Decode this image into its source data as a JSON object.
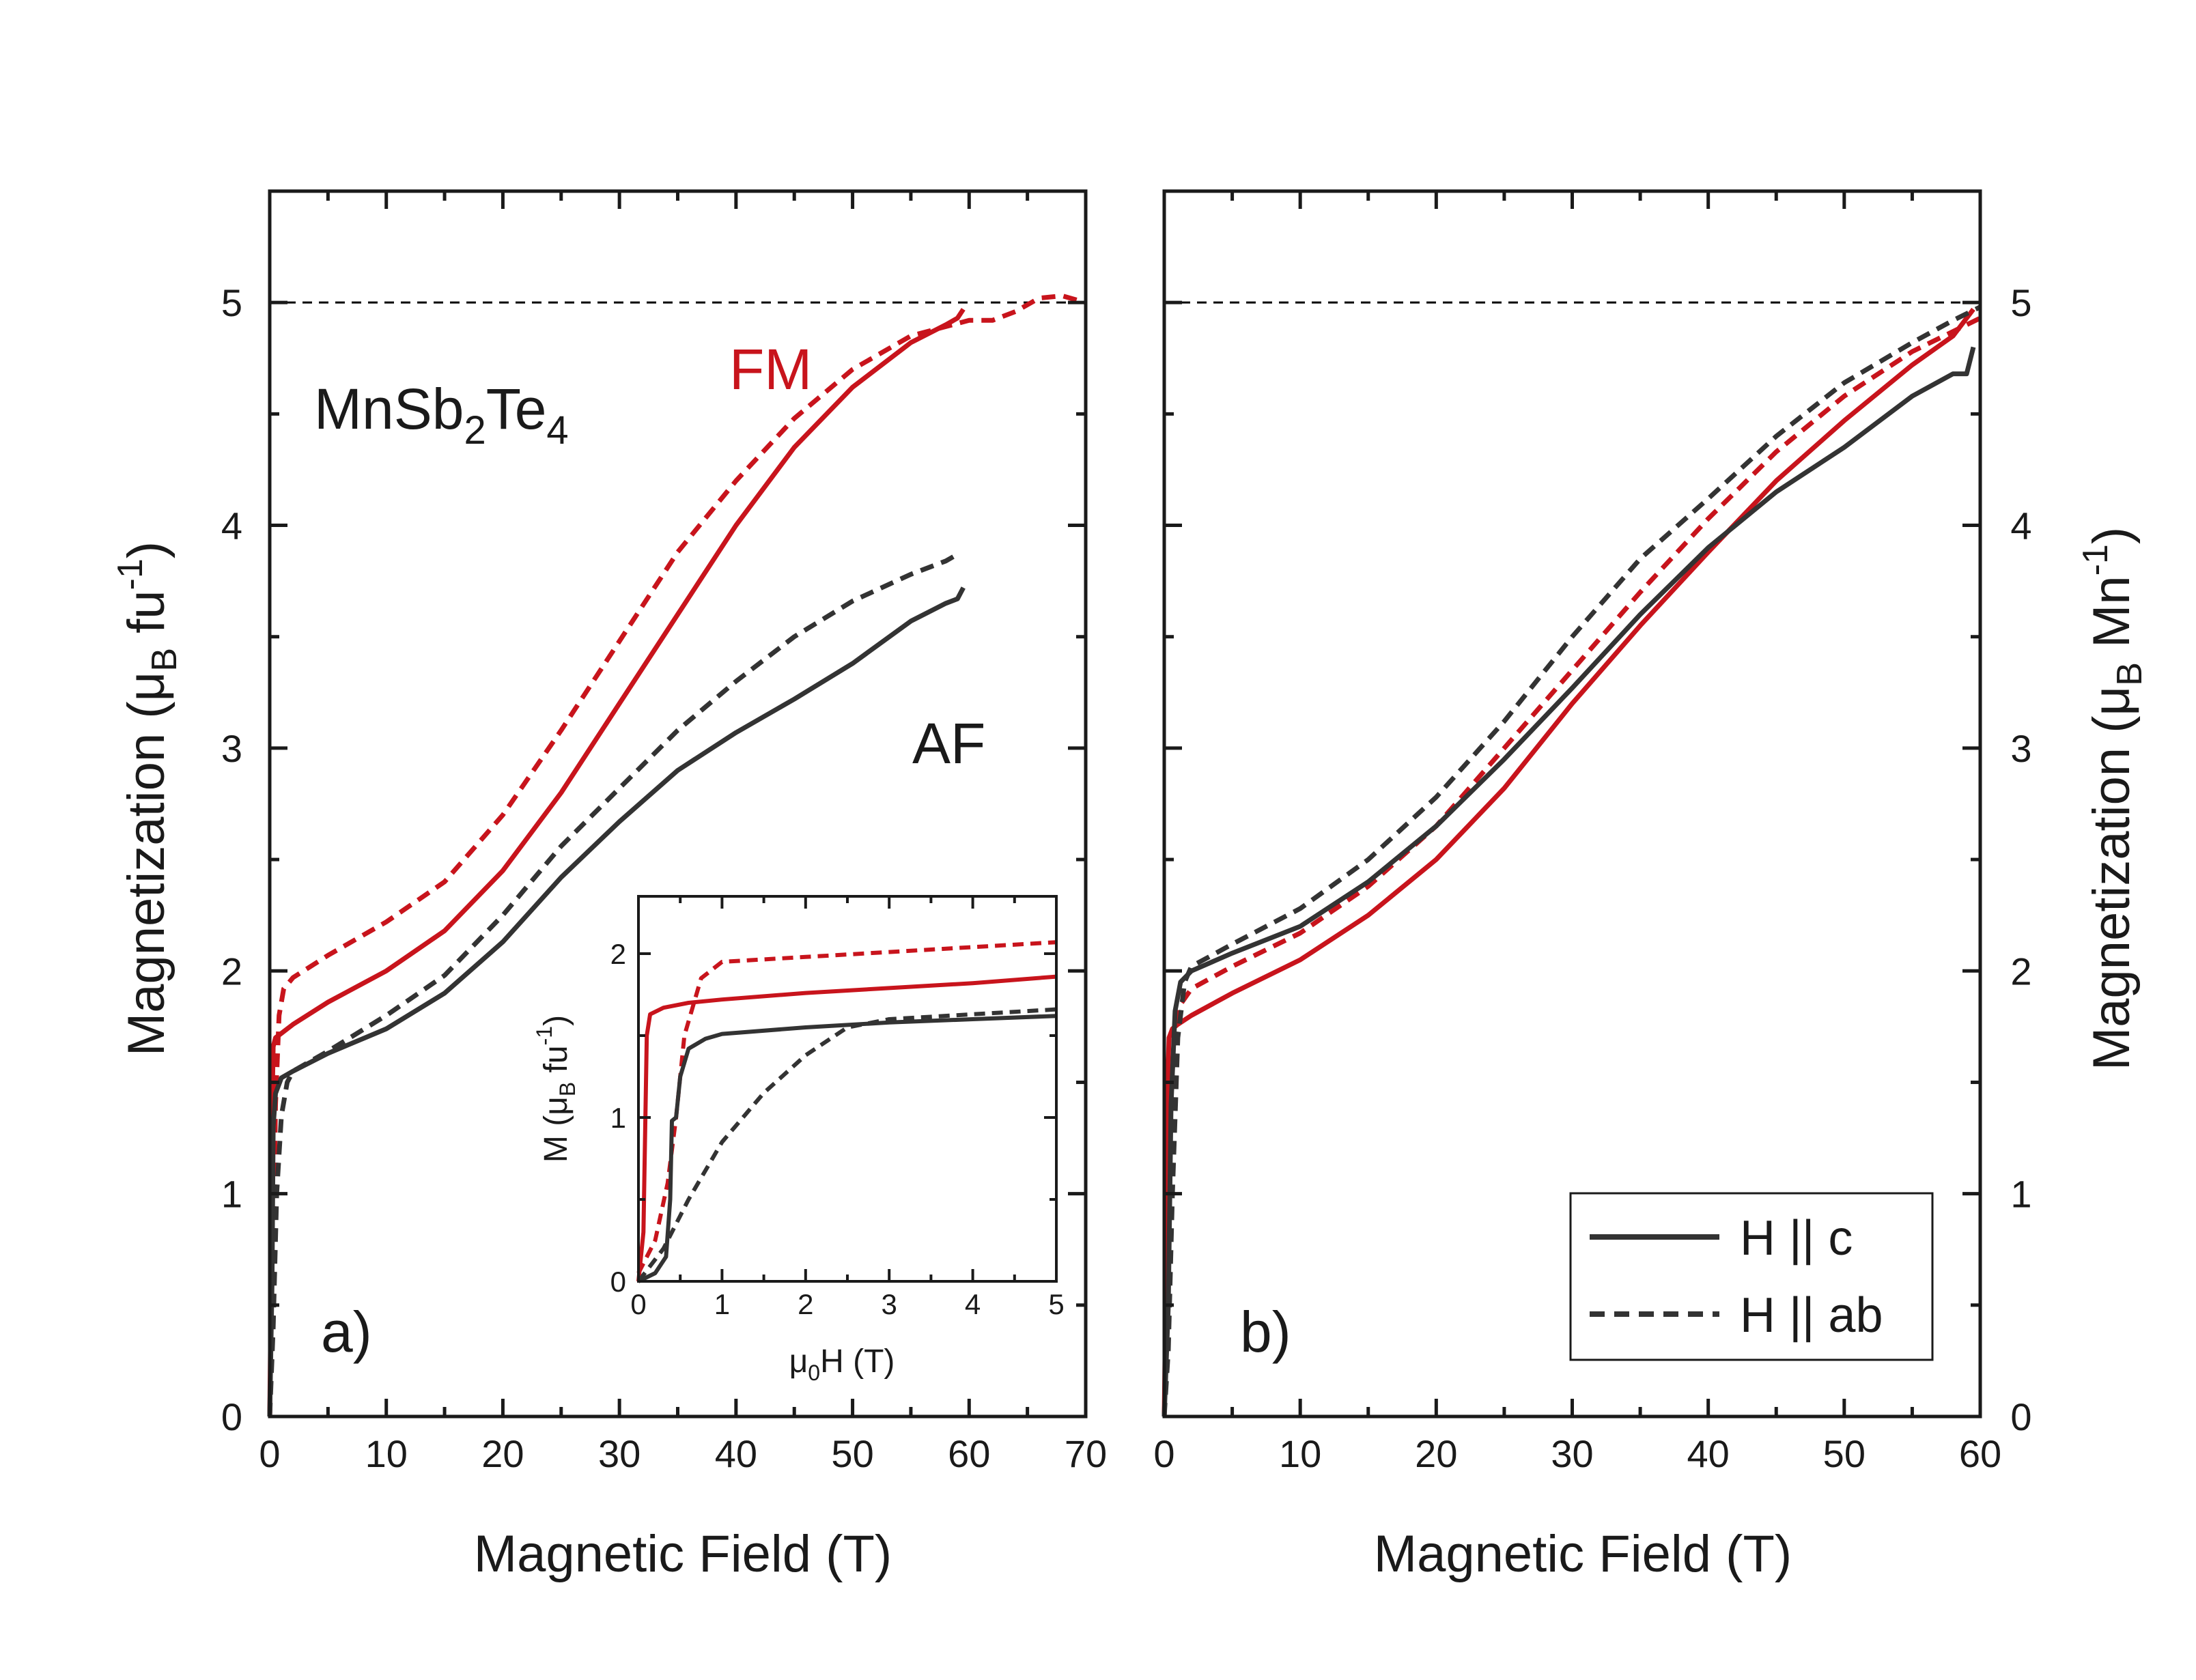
{
  "colors": {
    "fm": "#c8141c",
    "af": "#333333",
    "ref_line": "#000000",
    "axis": "#1a1a1a"
  },
  "chart_data": [
    {
      "id": "a",
      "type": "line",
      "panel_label": "a)",
      "xlabel": "Magnetic Field (T)",
      "ylabel": "Magnetization (μB fu-1)",
      "ylabel_parts": {
        "main": "Magnetization (μ",
        "sub": "B",
        "mid": " fu",
        "sup": "-1",
        "end": ")"
      },
      "xlim": [
        0,
        70
      ],
      "ylim": [
        0,
        5.5
      ],
      "xticks": [
        0,
        10,
        20,
        30,
        40,
        50,
        60,
        70
      ],
      "yticks": [
        0,
        1,
        2,
        3,
        4,
        5
      ],
      "reference_line_y": 5,
      "annotations": {
        "compound": {
          "main": "MnSb",
          "sub1": "2",
          "mid": "Te",
          "sub2": "4"
        },
        "fm": "FM",
        "af": "AF"
      },
      "series": [
        {
          "group": "FM",
          "orientation": "H || c",
          "style": "solid",
          "color": "#c8141c",
          "points": [
            [
              0,
              0
            ],
            [
              0.1,
              0.5
            ],
            [
              0.2,
              1.35
            ],
            [
              0.3,
              1.66
            ],
            [
              0.5,
              1.7
            ],
            [
              1,
              1.72
            ],
            [
              2,
              1.76
            ],
            [
              5,
              1.86
            ],
            [
              10,
              2.0
            ],
            [
              15,
              2.18
            ],
            [
              20,
              2.45
            ],
            [
              25,
              2.8
            ],
            [
              30,
              3.2
            ],
            [
              35,
              3.6
            ],
            [
              40,
              4.0
            ],
            [
              45,
              4.35
            ],
            [
              50,
              4.62
            ],
            [
              55,
              4.82
            ],
            [
              58,
              4.9
            ],
            [
              59,
              4.93
            ],
            [
              59.5,
              4.97
            ]
          ]
        },
        {
          "group": "FM",
          "orientation": "H || ab",
          "style": "dashed",
          "color": "#c8141c",
          "points": [
            [
              0,
              0
            ],
            [
              0.2,
              0.4
            ],
            [
              0.5,
              1.4
            ],
            [
              0.8,
              1.8
            ],
            [
              1.2,
              1.92
            ],
            [
              2,
              1.97
            ],
            [
              5,
              2.07
            ],
            [
              10,
              2.22
            ],
            [
              15,
              2.4
            ],
            [
              20,
              2.7
            ],
            [
              25,
              3.08
            ],
            [
              30,
              3.48
            ],
            [
              35,
              3.88
            ],
            [
              40,
              4.2
            ],
            [
              45,
              4.48
            ],
            [
              50,
              4.7
            ],
            [
              55,
              4.85
            ],
            [
              60,
              4.92
            ],
            [
              62,
              4.92
            ],
            [
              64,
              4.96
            ],
            [
              66,
              5.02
            ],
            [
              68,
              5.03
            ],
            [
              70,
              5.0
            ]
          ]
        },
        {
          "group": "AF",
          "orientation": "H || c",
          "style": "solid",
          "color": "#333333",
          "points": [
            [
              0,
              0
            ],
            [
              0.1,
              0.3
            ],
            [
              0.2,
              0.6
            ],
            [
              0.3,
              1.3
            ],
            [
              0.5,
              1.45
            ],
            [
              1,
              1.52
            ],
            [
              2,
              1.55
            ],
            [
              5,
              1.63
            ],
            [
              10,
              1.74
            ],
            [
              15,
              1.9
            ],
            [
              20,
              2.13
            ],
            [
              25,
              2.42
            ],
            [
              30,
              2.67
            ],
            [
              35,
              2.9
            ],
            [
              40,
              3.07
            ],
            [
              45,
              3.22
            ],
            [
              50,
              3.38
            ],
            [
              55,
              3.57
            ],
            [
              58,
              3.65
            ],
            [
              59,
              3.67
            ],
            [
              59.5,
              3.72
            ]
          ]
        },
        {
          "group": "AF",
          "orientation": "H || ab",
          "style": "dashed",
          "color": "#333333",
          "points": [
            [
              0,
              0
            ],
            [
              0.3,
              0.4
            ],
            [
              0.6,
              1.0
            ],
            [
              1,
              1.35
            ],
            [
              1.5,
              1.5
            ],
            [
              2,
              1.55
            ],
            [
              5,
              1.64
            ],
            [
              10,
              1.8
            ],
            [
              15,
              1.98
            ],
            [
              20,
              2.25
            ],
            [
              25,
              2.56
            ],
            [
              30,
              2.82
            ],
            [
              35,
              3.08
            ],
            [
              40,
              3.3
            ],
            [
              45,
              3.5
            ],
            [
              50,
              3.66
            ],
            [
              55,
              3.78
            ],
            [
              58,
              3.84
            ],
            [
              59,
              3.87
            ]
          ]
        }
      ]
    },
    {
      "id": "a-inset",
      "type": "line",
      "xlabel": "μ0H (T)",
      "xlabel_parts": {
        "main": "μ",
        "sub": "0",
        "end": "H (T)"
      },
      "ylabel": "M (μB fu-1)",
      "ylabel_parts": {
        "main": "M (μ",
        "sub": "B",
        "mid": " fu",
        "sup": "-1",
        "end": ")"
      },
      "xlim": [
        0,
        5
      ],
      "ylim": [
        0,
        2.35
      ],
      "xticks": [
        0,
        1,
        2,
        3,
        4,
        5
      ],
      "yticks": [
        0,
        1,
        2
      ],
      "series": [
        {
          "group": "FM",
          "orientation": "H || c",
          "style": "solid",
          "color": "#c8141c",
          "points": [
            [
              0,
              0
            ],
            [
              0.06,
              0.3
            ],
            [
              0.1,
              1.5
            ],
            [
              0.14,
              1.63
            ],
            [
              0.3,
              1.67
            ],
            [
              0.6,
              1.7
            ],
            [
              1,
              1.72
            ],
            [
              2,
              1.76
            ],
            [
              3,
              1.79
            ],
            [
              4,
              1.82
            ],
            [
              5,
              1.86
            ]
          ]
        },
        {
          "group": "FM",
          "orientation": "H || ab",
          "style": "dashed",
          "color": "#c8141c",
          "points": [
            [
              0,
              0.05
            ],
            [
              0.2,
              0.25
            ],
            [
              0.35,
              0.6
            ],
            [
              0.45,
              1.0
            ],
            [
              0.55,
              1.5
            ],
            [
              0.75,
              1.85
            ],
            [
              1,
              1.95
            ],
            [
              2,
              1.98
            ],
            [
              3,
              2.01
            ],
            [
              4,
              2.04
            ],
            [
              5,
              2.07
            ]
          ]
        },
        {
          "group": "AF",
          "orientation": "H || c",
          "style": "solid",
          "color": "#333333",
          "points": [
            [
              0,
              0
            ],
            [
              0.2,
              0.05
            ],
            [
              0.33,
              0.15
            ],
            [
              0.38,
              0.5
            ],
            [
              0.4,
              0.98
            ],
            [
              0.45,
              1.0
            ],
            [
              0.5,
              1.25
            ],
            [
              0.6,
              1.42
            ],
            [
              0.8,
              1.48
            ],
            [
              1,
              1.51
            ],
            [
              2,
              1.55
            ],
            [
              3,
              1.58
            ],
            [
              4,
              1.6
            ],
            [
              5,
              1.62
            ]
          ]
        },
        {
          "group": "AF",
          "orientation": "H || ab",
          "style": "dashed",
          "color": "#333333",
          "points": [
            [
              0,
              0
            ],
            [
              0.3,
              0.2
            ],
            [
              0.6,
              0.5
            ],
            [
              1,
              0.85
            ],
            [
              1.5,
              1.15
            ],
            [
              2,
              1.38
            ],
            [
              2.5,
              1.55
            ],
            [
              3,
              1.6
            ],
            [
              4,
              1.63
            ],
            [
              5,
              1.66
            ]
          ]
        }
      ]
    },
    {
      "id": "b",
      "type": "line",
      "panel_label": "b)",
      "xlabel": "Magnetic Field (T)",
      "ylabel": "Magnetization (μB Mn-1)",
      "ylabel_parts": {
        "main": "Magnetization (μ",
        "sub": "B",
        "mid": " Mn",
        "sup": "-1",
        "end": ")"
      },
      "xlim": [
        0,
        60
      ],
      "ylim": [
        0,
        5.5
      ],
      "xticks": [
        0,
        10,
        20,
        30,
        40,
        50,
        60
      ],
      "yticks": [
        0,
        1,
        2,
        3,
        4,
        5
      ],
      "reference_line_y": 5,
      "legend": {
        "position": "bottom-right",
        "entries": [
          {
            "label": "H || c",
            "style": "solid",
            "color": "#333333"
          },
          {
            "label": "H || ab",
            "style": "dashed",
            "color": "#333333"
          }
        ]
      },
      "series": [
        {
          "group": "FM",
          "orientation": "H || c",
          "style": "solid",
          "color": "#c8141c",
          "points": [
            [
              0,
              0
            ],
            [
              0.1,
              0.5
            ],
            [
              0.2,
              1.4
            ],
            [
              0.35,
              1.7
            ],
            [
              0.6,
              1.74
            ],
            [
              1,
              1.76
            ],
            [
              2,
              1.8
            ],
            [
              5,
              1.9
            ],
            [
              10,
              2.05
            ],
            [
              15,
              2.25
            ],
            [
              20,
              2.5
            ],
            [
              25,
              2.82
            ],
            [
              30,
              3.2
            ],
            [
              35,
              3.55
            ],
            [
              40,
              3.88
            ],
            [
              45,
              4.2
            ],
            [
              50,
              4.47
            ],
            [
              55,
              4.72
            ],
            [
              58,
              4.85
            ],
            [
              59.5,
              4.97
            ]
          ]
        },
        {
          "group": "FM",
          "orientation": "H || ab",
          "style": "dashed",
          "color": "#c8141c",
          "points": [
            [
              0,
              0
            ],
            [
              0.2,
              0.4
            ],
            [
              0.5,
              1.4
            ],
            [
              0.8,
              1.75
            ],
            [
              1.2,
              1.85
            ],
            [
              2,
              1.92
            ],
            [
              5,
              2.02
            ],
            [
              10,
              2.17
            ],
            [
              15,
              2.38
            ],
            [
              20,
              2.65
            ],
            [
              25,
              3.0
            ],
            [
              30,
              3.35
            ],
            [
              35,
              3.7
            ],
            [
              40,
              4.03
            ],
            [
              45,
              4.33
            ],
            [
              50,
              4.58
            ],
            [
              55,
              4.78
            ],
            [
              60,
              4.93
            ]
          ]
        },
        {
          "group": "AF",
          "orientation": "H || c",
          "style": "solid",
          "color": "#333333",
          "points": [
            [
              0,
              0
            ],
            [
              0.3,
              0.5
            ],
            [
              0.5,
              1.4
            ],
            [
              0.8,
              1.82
            ],
            [
              1.2,
              1.95
            ],
            [
              2,
              2.0
            ],
            [
              5,
              2.08
            ],
            [
              10,
              2.2
            ],
            [
              15,
              2.4
            ],
            [
              20,
              2.65
            ],
            [
              25,
              2.95
            ],
            [
              30,
              3.27
            ],
            [
              35,
              3.6
            ],
            [
              40,
              3.9
            ],
            [
              45,
              4.15
            ],
            [
              50,
              4.35
            ],
            [
              55,
              4.58
            ],
            [
              58,
              4.68
            ],
            [
              59,
              4.68
            ],
            [
              59.5,
              4.8
            ]
          ]
        },
        {
          "group": "AF",
          "orientation": "H || ab",
          "style": "dashed",
          "color": "#333333",
          "points": [
            [
              0,
              0
            ],
            [
              0.3,
              0.3
            ],
            [
              0.6,
              1.0
            ],
            [
              1,
              1.7
            ],
            [
              1.5,
              1.95
            ],
            [
              2,
              2.02
            ],
            [
              5,
              2.12
            ],
            [
              10,
              2.28
            ],
            [
              15,
              2.5
            ],
            [
              20,
              2.78
            ],
            [
              25,
              3.12
            ],
            [
              30,
              3.5
            ],
            [
              35,
              3.85
            ],
            [
              40,
              4.12
            ],
            [
              45,
              4.4
            ],
            [
              50,
              4.64
            ],
            [
              55,
              4.82
            ],
            [
              58,
              4.92
            ],
            [
              60,
              4.98
            ]
          ]
        }
      ]
    }
  ]
}
